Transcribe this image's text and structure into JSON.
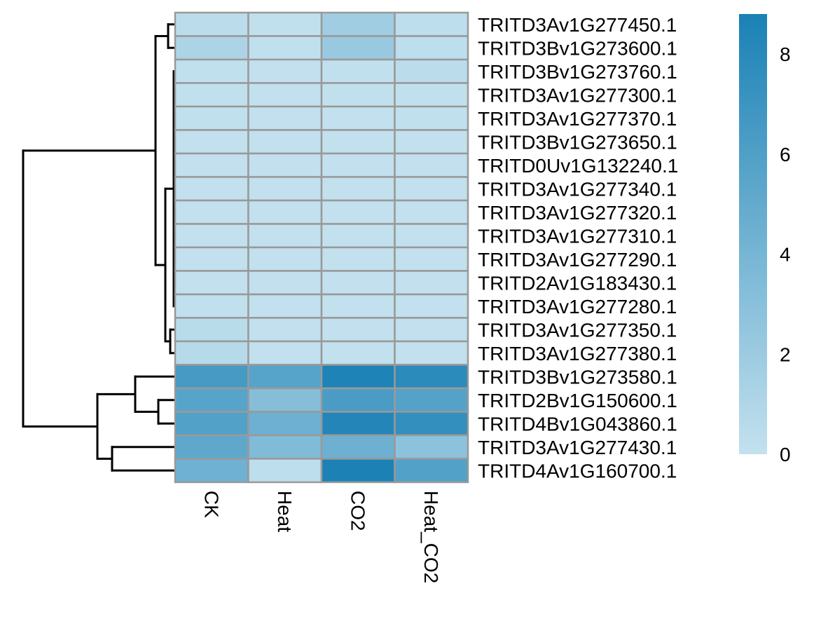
{
  "chart_data": {
    "type": "heatmap",
    "title": "",
    "columns": [
      "CK",
      "Heat",
      "CO2",
      "Heat_CO2"
    ],
    "rows": [
      "TRITD3Av1G277450.1",
      "TRITD3Bv1G273600.1",
      "TRITD3Bv1G273760.1",
      "TRITD3Av1G277300.1",
      "TRITD3Av1G277370.1",
      "TRITD3Bv1G273650.1",
      "TRITD0Uv1G132240.1",
      "TRITD3Av1G277340.1",
      "TRITD3Av1G277320.1",
      "TRITD3Av1G277310.1",
      "TRITD3Av1G277290.1",
      "TRITD2Av1G183430.1",
      "TRITD3Av1G277280.1",
      "TRITD3Av1G277350.1",
      "TRITD3Av1G277380.1",
      "TRITD3Bv1G273580.1",
      "TRITD2Bv1G150600.1",
      "TRITD4Bv1G043860.1",
      "TRITD3Av1G277430.1",
      "TRITD4Av1G160700.1"
    ],
    "values": [
      [
        0.4,
        0.1,
        1.8,
        0.3
      ],
      [
        1.2,
        0.1,
        2.2,
        0.3
      ],
      [
        0.1,
        0.05,
        0.1,
        0.4
      ],
      [
        0.1,
        0.05,
        0.1,
        0.1
      ],
      [
        0.1,
        0.05,
        0.05,
        0.1
      ],
      [
        0.05,
        0.05,
        0.05,
        0.05
      ],
      [
        0.05,
        0.05,
        0.05,
        0.05
      ],
      [
        0.05,
        0.05,
        0.05,
        0.05
      ],
      [
        0.05,
        0.05,
        0.05,
        0.05
      ],
      [
        0.05,
        0.05,
        0.05,
        0.05
      ],
      [
        0.05,
        0.05,
        0.05,
        0.05
      ],
      [
        0.05,
        0.05,
        0.05,
        0.05
      ],
      [
        0.1,
        0.05,
        0.05,
        0.05
      ],
      [
        0.5,
        0.05,
        0.05,
        0.05
      ],
      [
        0.6,
        0.05,
        0.05,
        0.05
      ],
      [
        6.5,
        5.6,
        8.6,
        7.9
      ],
      [
        5.6,
        3.2,
        6.3,
        5.8
      ],
      [
        5.9,
        4.5,
        8.3,
        7.5
      ],
      [
        5.2,
        3.5,
        4.5,
        2.8
      ],
      [
        4.4,
        0.3,
        8.7,
        5.9
      ]
    ],
    "color_scale": {
      "min": 0,
      "max": 8.8,
      "low_color": "#c3e1ee",
      "high_color": "#1a81b5",
      "ticks": [
        0,
        2,
        4,
        6,
        8
      ],
      "tick_labels": [
        "0",
        "2",
        "4",
        "6",
        "8"
      ]
    },
    "row_dendrogram": true,
    "grid": true,
    "legend_position": "right"
  }
}
